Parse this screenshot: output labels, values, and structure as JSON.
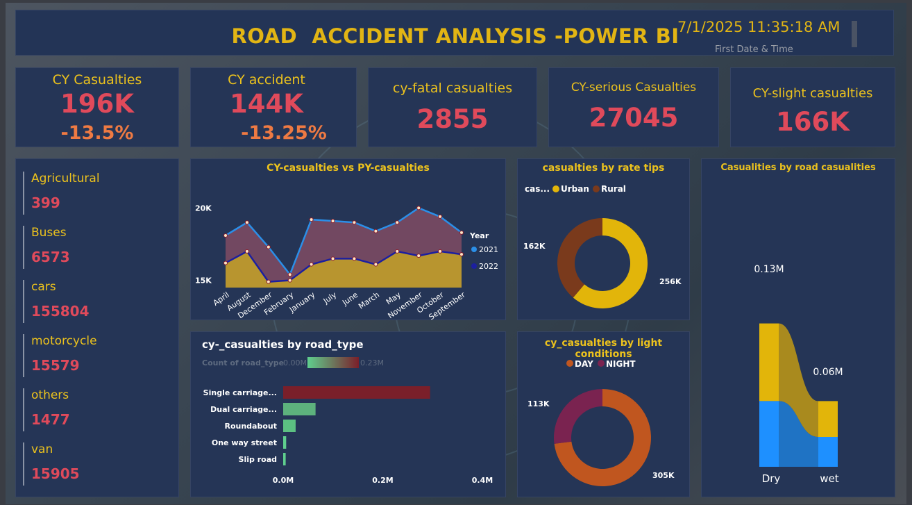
{
  "header": {
    "title": "ROAD  ACCIDENT ANALYSIS -POWER BI",
    "datetime": "7/1/2025 11:35:18 AM",
    "datetime_label": "First Date & Time"
  },
  "kpis": [
    {
      "label": "CY Casualties",
      "value": "196K",
      "delta": "-13.5%"
    },
    {
      "label": "CY accident",
      "value": "144K",
      "delta": "-13.25%"
    },
    {
      "label": "cy-fatal casualties",
      "value": "2855"
    },
    {
      "label": "CY-serious Casualties",
      "value": "27045"
    },
    {
      "label": "CY-slight casualties",
      "value": "166K"
    }
  ],
  "vehicle_types": [
    {
      "label": "Agricultural",
      "value": "399"
    },
    {
      "label": "Buses",
      "value": "6573"
    },
    {
      "label": "cars",
      "value": "155804"
    },
    {
      "label": "motorcycle",
      "value": "15579"
    },
    {
      "label": "others",
      "value": "1477"
    },
    {
      "label": "van",
      "value": "15905"
    }
  ],
  "colors": {
    "accent": "#ecc21d",
    "value_red": "#e04a5b",
    "delta_orange": "#ee7a43",
    "panel": "#253556",
    "series_2021": "#2b8fe8",
    "series_2022": "#1c1fa0",
    "urban": "#e2b50a",
    "rural": "#7a3a1c",
    "day": "#c0561f",
    "night": "#7a2350",
    "dry_wet_top": "#e2b50a",
    "dry_wet_bottom": "#1e90ff"
  },
  "chart_data": [
    {
      "type": "area",
      "title": "CY-casualties vs PY-casualties",
      "categories": [
        "April",
        "August",
        "December",
        "February",
        "January",
        "July",
        "June",
        "March",
        "May",
        "November",
        "October",
        "September"
      ],
      "series": [
        {
          "name": "2021",
          "values": [
            18.1,
            19.0,
            17.3,
            15.4,
            19.2,
            19.1,
            19.0,
            18.4,
            19.0,
            20.0,
            19.4,
            18.3
          ]
        },
        {
          "name": "2022",
          "values": [
            16.2,
            17.0,
            14.9,
            15.0,
            16.1,
            16.5,
            16.5,
            16.1,
            17.0,
            16.7,
            17.0,
            16.8
          ]
        }
      ],
      "y_ticks": [
        "20K",
        "15K"
      ],
      "ylim": [
        14.5,
        20.5
      ],
      "legend_title": "Year",
      "legend": [
        "2021",
        "2022"
      ]
    },
    {
      "type": "pie",
      "title": "casualties by rate tips",
      "legend_prefix": "cas...",
      "labels": [
        "Urban",
        "Rural"
      ],
      "values": [
        256,
        162
      ],
      "data_labels": [
        "256K",
        "162K"
      ]
    },
    {
      "type": "bar",
      "title": "cy-_casualties by road_type",
      "legend_label": "Count of road_type",
      "legend_min": "0.00M",
      "legend_max": "0.23M",
      "categories": [
        "Single carriage...",
        "Dual carriage...",
        "Roundabout",
        "One way street",
        "Slip road"
      ],
      "values": [
        0.295,
        0.065,
        0.025,
        0.006,
        0.005
      ],
      "x_ticks": [
        "0.0M",
        "0.2M",
        "0.4M"
      ],
      "xlim": [
        0,
        0.4
      ]
    },
    {
      "type": "pie",
      "title": "cy_casualties by light conditions",
      "labels": [
        "DAY",
        "NIGHT"
      ],
      "values": [
        305,
        113
      ],
      "data_labels": [
        "305K",
        "113K"
      ]
    },
    {
      "type": "bar",
      "title": "Casualities by road casualities",
      "categories": [
        "Dry",
        "wet"
      ],
      "series": [
        {
          "name": "upper",
          "values": [
            0.13,
            0.06
          ]
        },
        {
          "name": "lower",
          "values": [
            0.11,
            0.05
          ]
        }
      ],
      "data_labels": [
        "0.13M",
        "0.06M"
      ]
    }
  ]
}
